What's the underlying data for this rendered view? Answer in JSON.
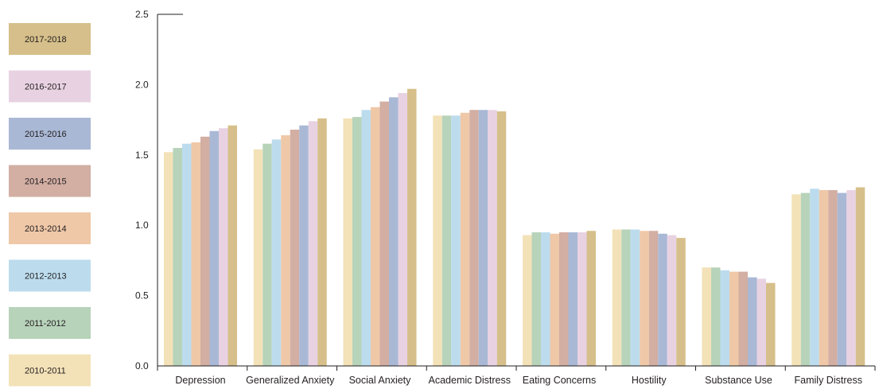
{
  "chart_data": {
    "type": "bar",
    "title": "",
    "xlabel": "",
    "ylabel": "",
    "ylim": [
      0,
      2.5
    ],
    "yticks": [
      "0.0",
      "0.5",
      "1.0",
      "1.5",
      "2.0",
      "2.5"
    ],
    "grid": false,
    "legend_position": "left",
    "categories": [
      "Depression",
      "Generalized Anxiety",
      "Social Anxiety",
      "Academic Distress",
      "Eating Concerns",
      "Hostility",
      "Substance Use",
      "Family Distress"
    ],
    "series": [
      {
        "name": "2010-2011",
        "color": "#f3e2b8",
        "values": [
          1.52,
          1.54,
          1.76,
          1.78,
          0.93,
          0.97,
          0.7,
          1.22
        ]
      },
      {
        "name": "2011-2012",
        "color": "#b7d3ba",
        "values": [
          1.55,
          1.58,
          1.77,
          1.78,
          0.95,
          0.97,
          0.7,
          1.23
        ]
      },
      {
        "name": "2012-2013",
        "color": "#bcdcee",
        "values": [
          1.58,
          1.61,
          1.82,
          1.78,
          0.95,
          0.97,
          0.68,
          1.26
        ]
      },
      {
        "name": "2013-2014",
        "color": "#efc8a8",
        "values": [
          1.59,
          1.64,
          1.84,
          1.8,
          0.94,
          0.96,
          0.67,
          1.25
        ]
      },
      {
        "name": "2014-2015",
        "color": "#d2aea3",
        "values": [
          1.63,
          1.68,
          1.88,
          1.82,
          0.95,
          0.96,
          0.67,
          1.25
        ]
      },
      {
        "name": "2015-2016",
        "color": "#a9b8d5",
        "values": [
          1.67,
          1.71,
          1.91,
          1.82,
          0.95,
          0.94,
          0.63,
          1.23
        ]
      },
      {
        "name": "2016-2017",
        "color": "#e8d2e2",
        "values": [
          1.69,
          1.74,
          1.94,
          1.82,
          0.95,
          0.93,
          0.62,
          1.25
        ]
      },
      {
        "name": "2017-2018",
        "color": "#d6bf8a",
        "values": [
          1.71,
          1.76,
          1.97,
          1.81,
          0.96,
          0.91,
          0.59,
          1.27
        ]
      }
    ]
  }
}
